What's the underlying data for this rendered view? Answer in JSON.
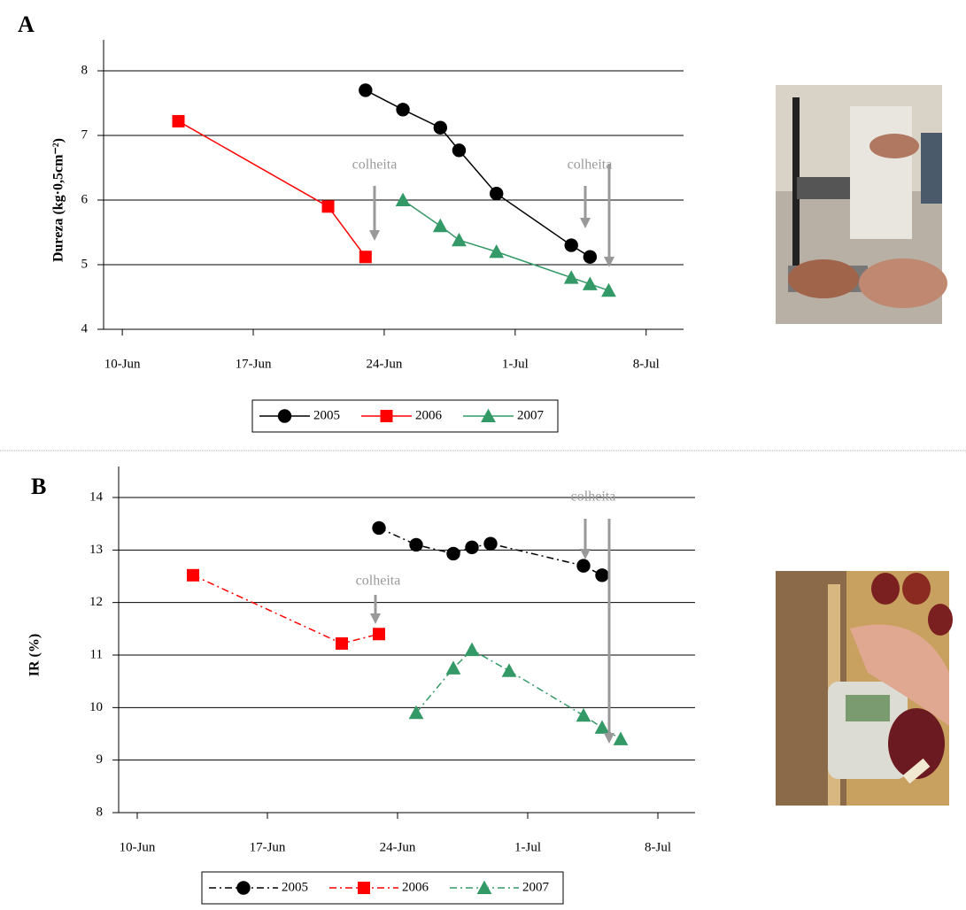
{
  "chart_data": [
    {
      "type": "line",
      "panel": "A",
      "ylabel": "Dureza (kg·0,5cm⁻²)",
      "line_style": "solid",
      "grid": true,
      "xlim": [
        "9-Jun",
        "10-Jul"
      ],
      "xticks": [
        "10-Jun",
        "17-Jun",
        "24-Jun",
        "1-Jul",
        "8-Jul"
      ],
      "ylim": [
        4,
        8
      ],
      "yticks": [
        4,
        5,
        6,
        7,
        8
      ],
      "annotations": [
        "colheita",
        "colheita"
      ],
      "series": [
        {
          "name": "2005",
          "color": "#000000",
          "marker": "circle",
          "x": [
            "23-Jun",
            "25-Jun",
            "27-Jun",
            "28-Jun",
            "30-Jun",
            "4-Jul",
            "5-Jul"
          ],
          "values": [
            7.7,
            7.4,
            7.12,
            6.77,
            6.1,
            5.3,
            5.12
          ]
        },
        {
          "name": "2006",
          "color": "#ff0000",
          "marker": "square",
          "x": [
            "13-Jun",
            "21-Jun",
            "23-Jun"
          ],
          "values": [
            7.22,
            5.9,
            5.12
          ]
        },
        {
          "name": "2007",
          "color": "#339966",
          "marker": "triangle",
          "x": [
            "25-Jun",
            "27-Jun",
            "28-Jun",
            "30-Jun",
            "4-Jul",
            "5-Jul",
            "6-Jul"
          ],
          "values": [
            6.0,
            5.6,
            5.38,
            5.2,
            4.8,
            4.7,
            4.6
          ]
        }
      ]
    },
    {
      "type": "line",
      "panel": "B",
      "ylabel": "IR (%)",
      "line_style": "dash-dot",
      "grid": true,
      "xlim": [
        "9-Jun",
        "10-Jul"
      ],
      "xticks": [
        "10-Jun",
        "17-Jun",
        "24-Jun",
        "1-Jul",
        "8-Jul"
      ],
      "ylim": [
        8,
        14
      ],
      "yticks": [
        8,
        9,
        10,
        11,
        12,
        13,
        14
      ],
      "annotations": [
        "colheita",
        "colheita"
      ],
      "series": [
        {
          "name": "2005",
          "color": "#000000",
          "marker": "circle",
          "x": [
            "23-Jun",
            "25-Jun",
            "27-Jun",
            "28-Jun",
            "29-Jun",
            "4-Jul",
            "5-Jul"
          ],
          "values": [
            13.42,
            13.1,
            12.93,
            13.05,
            13.12,
            12.7,
            12.52
          ]
        },
        {
          "name": "2006",
          "color": "#ff0000",
          "marker": "square",
          "x": [
            "13-Jun",
            "21-Jun",
            "23-Jun"
          ],
          "values": [
            12.52,
            11.22,
            11.4
          ]
        },
        {
          "name": "2007",
          "color": "#339966",
          "marker": "triangle",
          "x": [
            "25-Jun",
            "27-Jun",
            "28-Jun",
            "30-Jun",
            "4-Jul",
            "5-Jul",
            "6-Jul"
          ],
          "values": [
            9.9,
            10.75,
            11.1,
            10.7,
            9.85,
            9.62,
            9.4
          ]
        }
      ]
    }
  ]
}
